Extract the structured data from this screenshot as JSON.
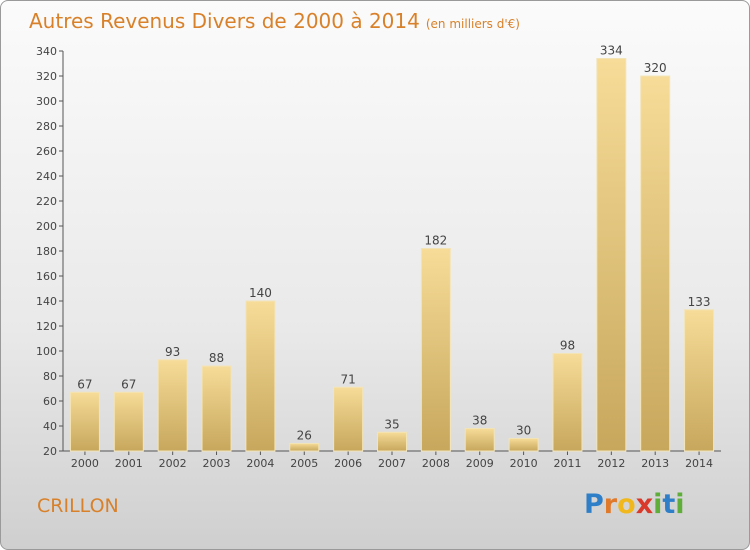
{
  "title": "Autres Revenus Divers de 2000 à 2014",
  "unit": "(en milliers d'€)",
  "place": "CRILLON",
  "logo": {
    "letters": [
      "P",
      "r",
      "o",
      "x",
      "i",
      "t",
      "i"
    ],
    "colors": [
      "#2f7fc8",
      "#e07a2a",
      "#f0b81c",
      "#d8392b",
      "#5fae3a",
      "#2f7fc8",
      "#5fae3a"
    ]
  },
  "chart_data": {
    "type": "bar",
    "title": "Autres Revenus Divers de 2000 à 2014",
    "xlabel": "",
    "ylabel": "",
    "categories": [
      "2000",
      "2001",
      "2002",
      "2003",
      "2004",
      "2005",
      "2006",
      "2007",
      "2008",
      "2009",
      "2010",
      "2011",
      "2012",
      "2013",
      "2014"
    ],
    "values": [
      67,
      67,
      93,
      88,
      140,
      26,
      71,
      35,
      182,
      38,
      30,
      98,
      334,
      320,
      133
    ],
    "ylim": [
      20,
      340
    ],
    "yticks": [
      20,
      40,
      60,
      80,
      100,
      120,
      140,
      160,
      180,
      200,
      220,
      240,
      260,
      280,
      300,
      320,
      340
    ],
    "grid": false,
    "bar_color": "#e8c87a"
  }
}
